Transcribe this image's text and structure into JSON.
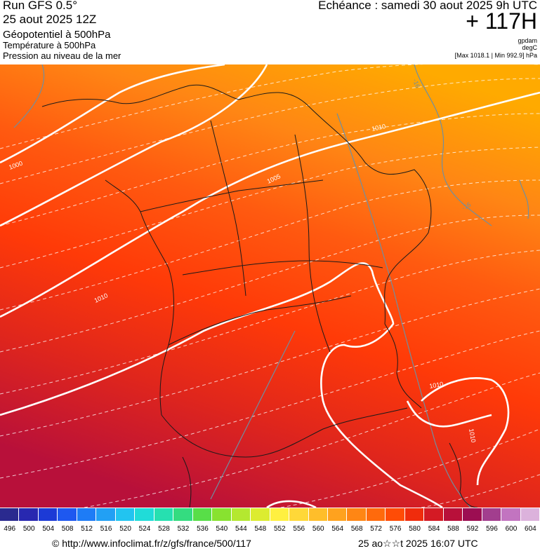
{
  "header": {
    "run": "Run GFS 0.5°",
    "run_date": "25 aout 2025 12Z",
    "field_geopotential": "Géopotentiel à 500hPa",
    "field_temperature": "Température à 500hPa",
    "field_pressure": "Pression au niveau de la mer",
    "echeance": "Echéance : samedi 30 aout 2025 9h UTC",
    "forecast_hour": "+ 117H",
    "unit_geopotential": "gpdam",
    "unit_temperature": "degC",
    "pressure_range": "[Max 1018.1 | Min 992.9] hPa"
  },
  "map": {
    "isobar_labels": [
      "1000",
      "1005",
      "1010",
      "1010",
      "1010",
      "1010"
    ],
    "isotherm_labels": [
      "-16",
      "-16"
    ],
    "colors": {
      "isobar": "#ffffff",
      "isotherm": "#6f8fa0",
      "borders": "#1a1a1a",
      "field_high": "#ff3300",
      "field_low": "#ffaa00"
    }
  },
  "scale": {
    "ticks": [
      "496",
      "500",
      "504",
      "508",
      "512",
      "516",
      "520",
      "524",
      "528",
      "532",
      "536",
      "540",
      "544",
      "548",
      "552",
      "556",
      "560",
      "564",
      "568",
      "572",
      "576",
      "580",
      "584",
      "588",
      "592",
      "596",
      "600",
      "604"
    ],
    "colors": [
      "#2a2a8f",
      "#2828b0",
      "#1c3ad6",
      "#1e58f0",
      "#1e7cf6",
      "#22a0f4",
      "#22c4f0",
      "#20dcd8",
      "#26e0b0",
      "#34dc80",
      "#58de48",
      "#88e230",
      "#b4e830",
      "#dcec30",
      "#fff040",
      "#ffd838",
      "#ffbe2a",
      "#ffa21e",
      "#ff8614",
      "#ff6a0c",
      "#ff4c06",
      "#f02c0c",
      "#d41a24",
      "#b8103a",
      "#9c0e52",
      "#a23e8e",
      "#c274c0",
      "#dcb2dc"
    ]
  },
  "footer": {
    "url": "© http://www.infoclimat.fr/z/gfs/france/500/117",
    "generated": "25 ao☆☆t 2025 16:07 UTC"
  }
}
